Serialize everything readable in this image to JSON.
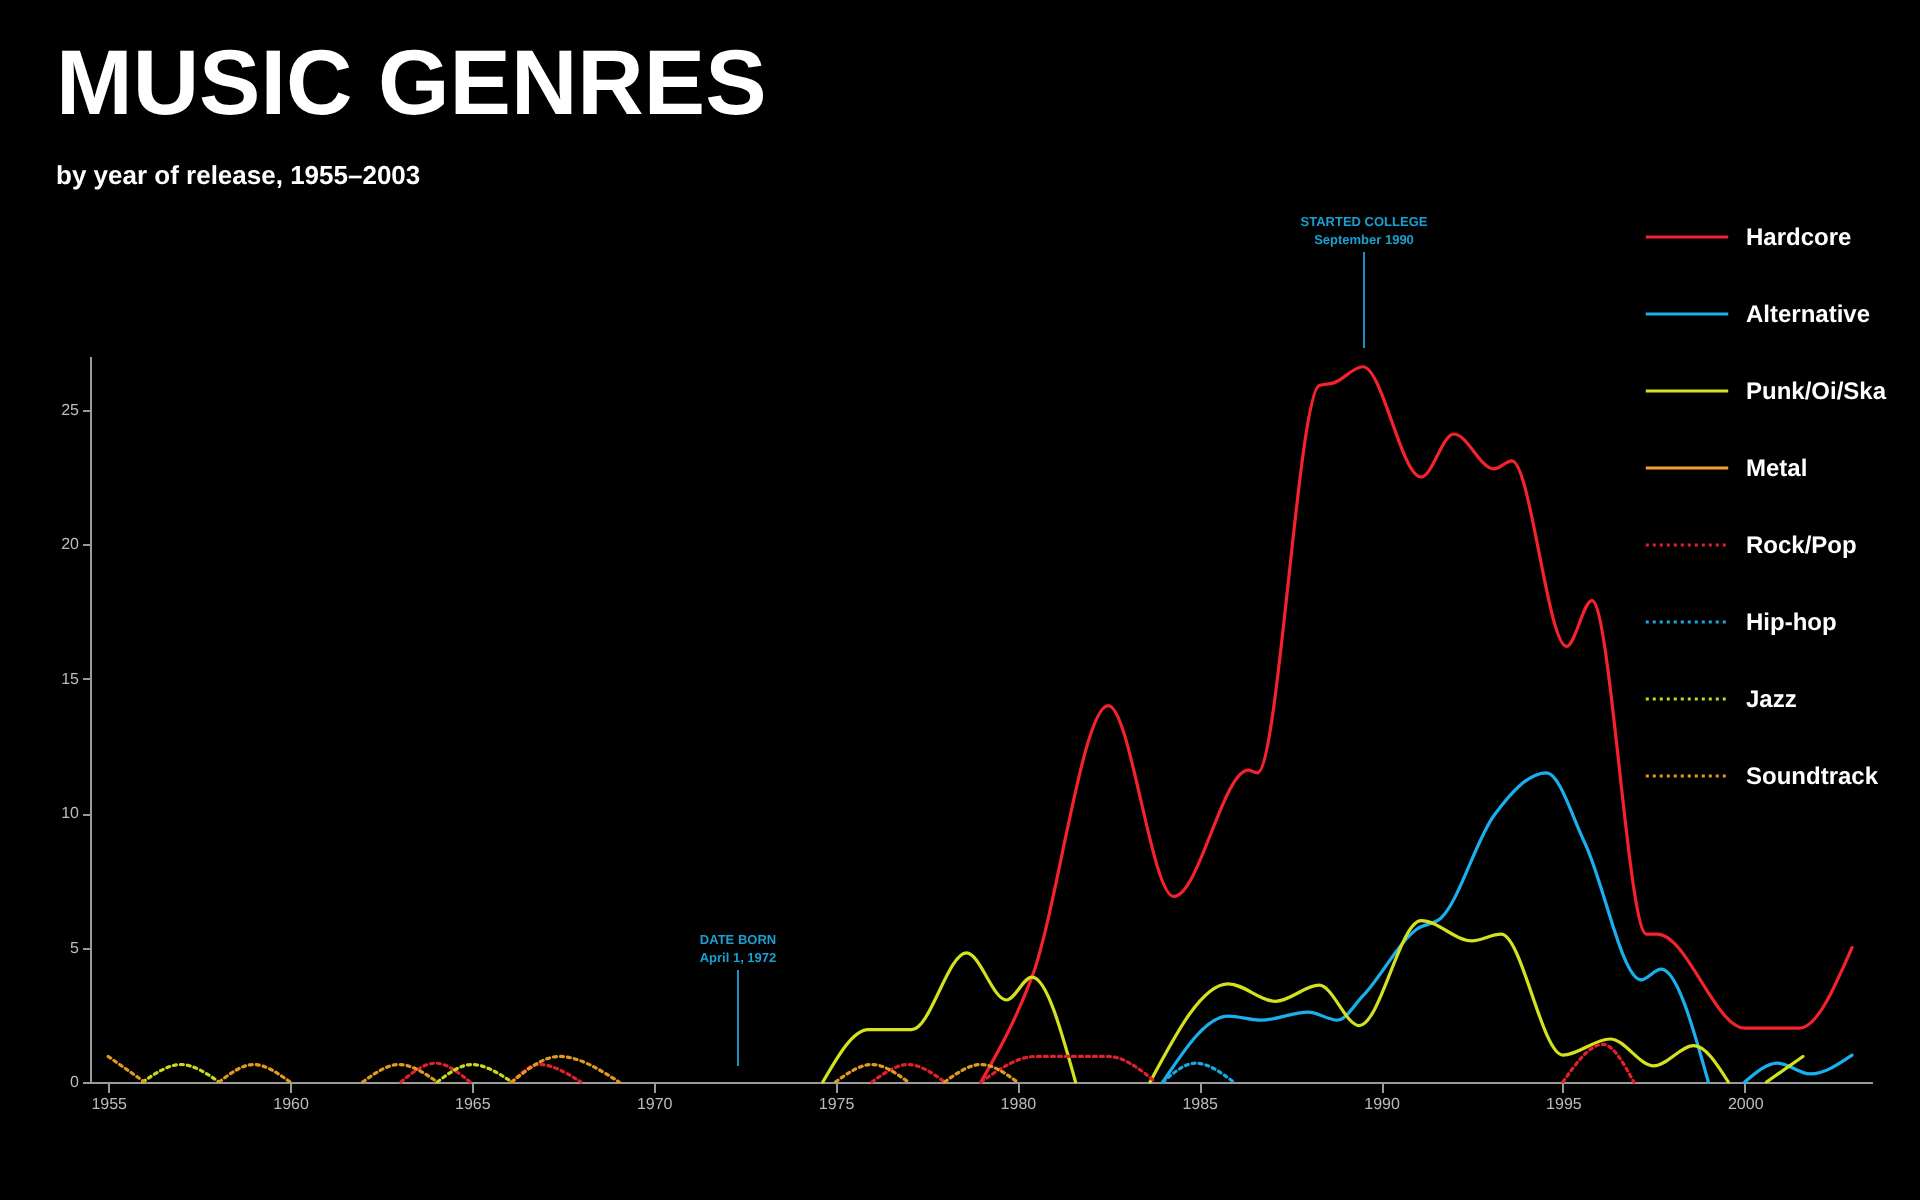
{
  "chart_data": {
    "type": "line",
    "title": "MUSIC GENRES",
    "subtitle": "by year of release, 1955–2003",
    "xlim": [
      1954.5,
      2003.5
    ],
    "xticks": [
      1955,
      1960,
      1965,
      1970,
      1975,
      1980,
      1985,
      1990,
      1995,
      2000
    ],
    "ylim": [
      0,
      27
    ],
    "yticks": [
      0,
      5,
      10,
      15,
      20,
      25
    ],
    "legend": "top right",
    "annotations": [
      "DATE BORN",
      "April 1, 1972",
      "STARTED COLLEGE",
      "September 1990"
    ],
    "series": [
      {
        "name": "Hardcore",
        "color": "#f5222d",
        "line_style": "solid",
        "x": [
          1979.0,
          1980.4,
          1982.5,
          1984.3,
          1986.35,
          1986.6,
          1988.3,
          1988.7,
          1989.5,
          1991.1,
          1992.0,
          1993.1,
          1993.6,
          1995.1,
          1995.8,
          1997.3,
          1997.6,
          2000.0,
          2001.5,
          2002.95
        ],
        "values": [
          0,
          3.9,
          14.0,
          6.9,
          11.6,
          11.5,
          25.9,
          26.0,
          26.6,
          22.5,
          24.1,
          22.8,
          23.1,
          16.2,
          17.9,
          5.5,
          5.5,
          2.0,
          2.0,
          5.0
        ]
      },
      {
        "name": "Alternative",
        "color": "#1ab0ee",
        "line_style": "solid",
        "x": [
          1984.0,
          1985.8,
          1986.7,
          1988.0,
          1988.8,
          1989.5,
          1991.0,
          1991.65,
          1993.1,
          1994.55,
          1995.6,
          1997.15,
          1997.7,
          1999.0,
          1999.5,
          2000.0,
          2000.9,
          2001.8,
          2002.95
        ],
        "values": [
          0,
          2.45,
          2.3,
          2.6,
          2.3,
          3.2,
          5.7,
          6.1,
          9.9,
          11.5,
          8.9,
          3.8,
          4.2,
          0,
          null,
          0,
          0.7,
          0.3,
          1.0
        ]
      },
      {
        "name": "Punk/Oi/Ska",
        "color": "#d4e21d",
        "line_style": "solid",
        "x": [
          1974.65,
          1975.9,
          1977.1,
          1978.6,
          1979.7,
          1980.4,
          1981.6,
          1982.6,
          1983.65,
          1985.8,
          1987.1,
          1988.3,
          1989.4,
          1991.1,
          1992.5,
          1993.3,
          1995.0,
          1996.3,
          1997.5,
          1998.6,
          1999.55,
          2000.1,
          2000.6,
          2001.6
        ],
        "values": [
          0,
          1.95,
          1.95,
          4.8,
          3.05,
          3.9,
          0,
          null,
          0,
          3.65,
          3.0,
          3.6,
          2.1,
          6.0,
          5.25,
          5.5,
          1.0,
          1.6,
          0.6,
          1.35,
          0,
          null,
          0,
          0.95
        ]
      },
      {
        "name": "Metal",
        "color": "#f0a030",
        "line_style": "solid"
      },
      {
        "name": "Rock/Pop",
        "color": "#e0202a",
        "line_style": "dotted",
        "x": [
          1963.05,
          1964.0,
          1964.95,
          1965.5,
          1966.1,
          1966.85,
          1968.0,
          1972.0,
          1976.0,
          1977.0,
          1978.0,
          1978.5,
          1979.0,
          1980.5,
          1982.5,
          1983.8,
          1989.0,
          1995.0,
          1996.1,
          1996.95
        ],
        "values": [
          0,
          0.7,
          0,
          null,
          0,
          0.65,
          0,
          null,
          0,
          0.65,
          0,
          null,
          0,
          0.95,
          0.95,
          0,
          null,
          0,
          1.4,
          0
        ]
      },
      {
        "name": "Hip-hop",
        "color": "#1aa8e0",
        "line_style": "dotted",
        "x": [
          1984.0,
          1984.9,
          1985.95
        ],
        "values": [
          0,
          0.7,
          0
        ]
      },
      {
        "name": "Jazz",
        "color": "#c8d820",
        "line_style": "dotted",
        "x": [
          1955.95,
          1957.0,
          1958.05,
          1961.0,
          1964.05,
          1965.0,
          1966.1
        ],
        "values": [
          0,
          0.65,
          0,
          null,
          0,
          0.65,
          0
        ]
      },
      {
        "name": "Soundtrack",
        "color": "#e09a20",
        "line_style": "dotted",
        "x": [
          1955.0,
          1956.0,
          1957.0,
          1958.05,
          1959.0,
          1960.0,
          1961.0,
          1962.0,
          1963.0,
          1964.05,
          1965.0,
          1966.1,
          1967.4,
          1969.05,
          1972.0,
          1975.0,
          1976.0,
          1977.0,
          1977.5,
          1978.0,
          1979.0,
          1980.0
        ],
        "values": [
          0.95,
          0,
          null,
          0,
          0.65,
          0,
          null,
          0,
          0.65,
          0,
          null,
          0,
          0.95,
          0,
          null,
          0,
          0.65,
          0,
          null,
          0,
          0.65,
          0
        ]
      }
    ]
  }
}
